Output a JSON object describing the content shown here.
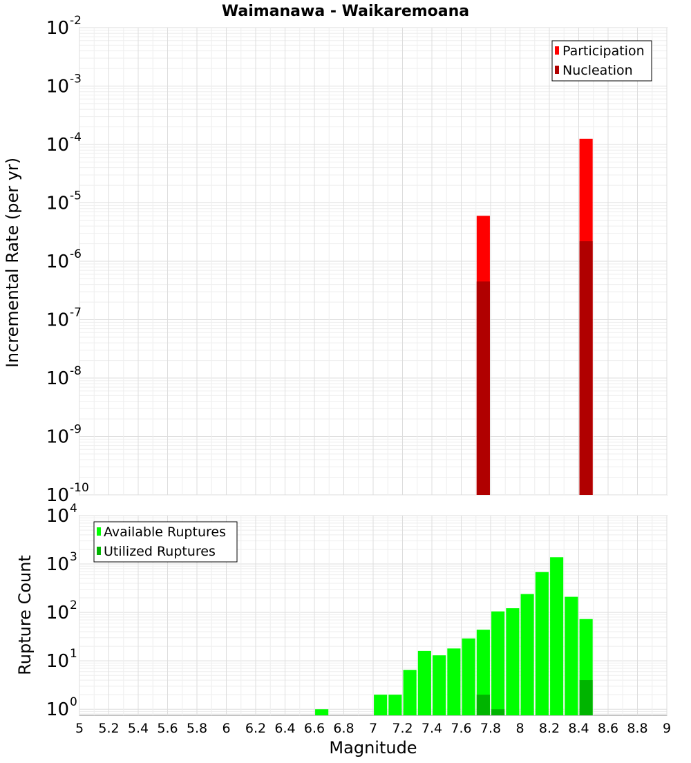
{
  "chart_data": [
    {
      "type": "bar",
      "title": "Waimanawa - Waikaremoana",
      "ylabel": "Incremental Rate (per yr)",
      "xlabel": "",
      "y_scale": "log",
      "ylim": [
        1e-10,
        0.01
      ],
      "xlim": [
        5,
        9
      ],
      "y_tick_exponents": [
        "-10",
        "-9",
        "-8",
        "-7",
        "-6",
        "-5",
        "-4",
        "-3",
        "-2"
      ],
      "y_tick_base": "10",
      "grid": true,
      "legend_position": "top-right",
      "bar_width": 0.09,
      "series": [
        {
          "name": "Participation",
          "color": "#ff0000",
          "points": [
            {
              "x": 7.75,
              "y": 6e-06
            },
            {
              "x": 8.45,
              "y": 0.000125
            }
          ]
        },
        {
          "name": "Nucleation",
          "color": "#b00000",
          "points": [
            {
              "x": 7.75,
              "y": 4.5e-07
            },
            {
              "x": 8.45,
              "y": 2.2e-06
            }
          ]
        }
      ]
    },
    {
      "type": "bar",
      "title": "",
      "ylabel": "Rupture Count",
      "xlabel": "Magnitude",
      "y_scale": "log",
      "ylim": [
        0.75,
        10000
      ],
      "xlim": [
        5,
        9
      ],
      "y_tick_exponents": [
        "0",
        "1",
        "2",
        "3",
        "4"
      ],
      "y_tick_base": "10",
      "x_tick_labels": [
        "5",
        "5.2",
        "5.4",
        "5.6",
        "5.8",
        "6",
        "6.2",
        "6.4",
        "6.6",
        "6.8",
        "7",
        "7.2",
        "7.4",
        "7.6",
        "7.8",
        "8",
        "8.2",
        "8.4",
        "8.6",
        "8.8",
        "9"
      ],
      "grid": true,
      "legend_position": "top-left",
      "bar_width": 0.09,
      "series": [
        {
          "name": "Available Ruptures",
          "color": "#00ff00",
          "points": [
            {
              "x": 6.65,
              "y": 1
            },
            {
              "x": 7.05,
              "y": 2
            },
            {
              "x": 7.15,
              "y": 2
            },
            {
              "x": 7.25,
              "y": 6.5
            },
            {
              "x": 7.35,
              "y": 16
            },
            {
              "x": 7.45,
              "y": 13
            },
            {
              "x": 7.55,
              "y": 18
            },
            {
              "x": 7.65,
              "y": 29
            },
            {
              "x": 7.75,
              "y": 44
            },
            {
              "x": 7.85,
              "y": 105
            },
            {
              "x": 7.95,
              "y": 122
            },
            {
              "x": 8.05,
              "y": 240
            },
            {
              "x": 8.15,
              "y": 680
            },
            {
              "x": 8.25,
              "y": 1380
            },
            {
              "x": 8.35,
              "y": 210
            },
            {
              "x": 8.45,
              "y": 73
            }
          ]
        },
        {
          "name": "Utilized Ruptures",
          "color": "#00b400",
          "points": [
            {
              "x": 7.75,
              "y": 2
            },
            {
              "x": 7.85,
              "y": 1
            },
            {
              "x": 8.45,
              "y": 4
            }
          ]
        }
      ]
    }
  ]
}
